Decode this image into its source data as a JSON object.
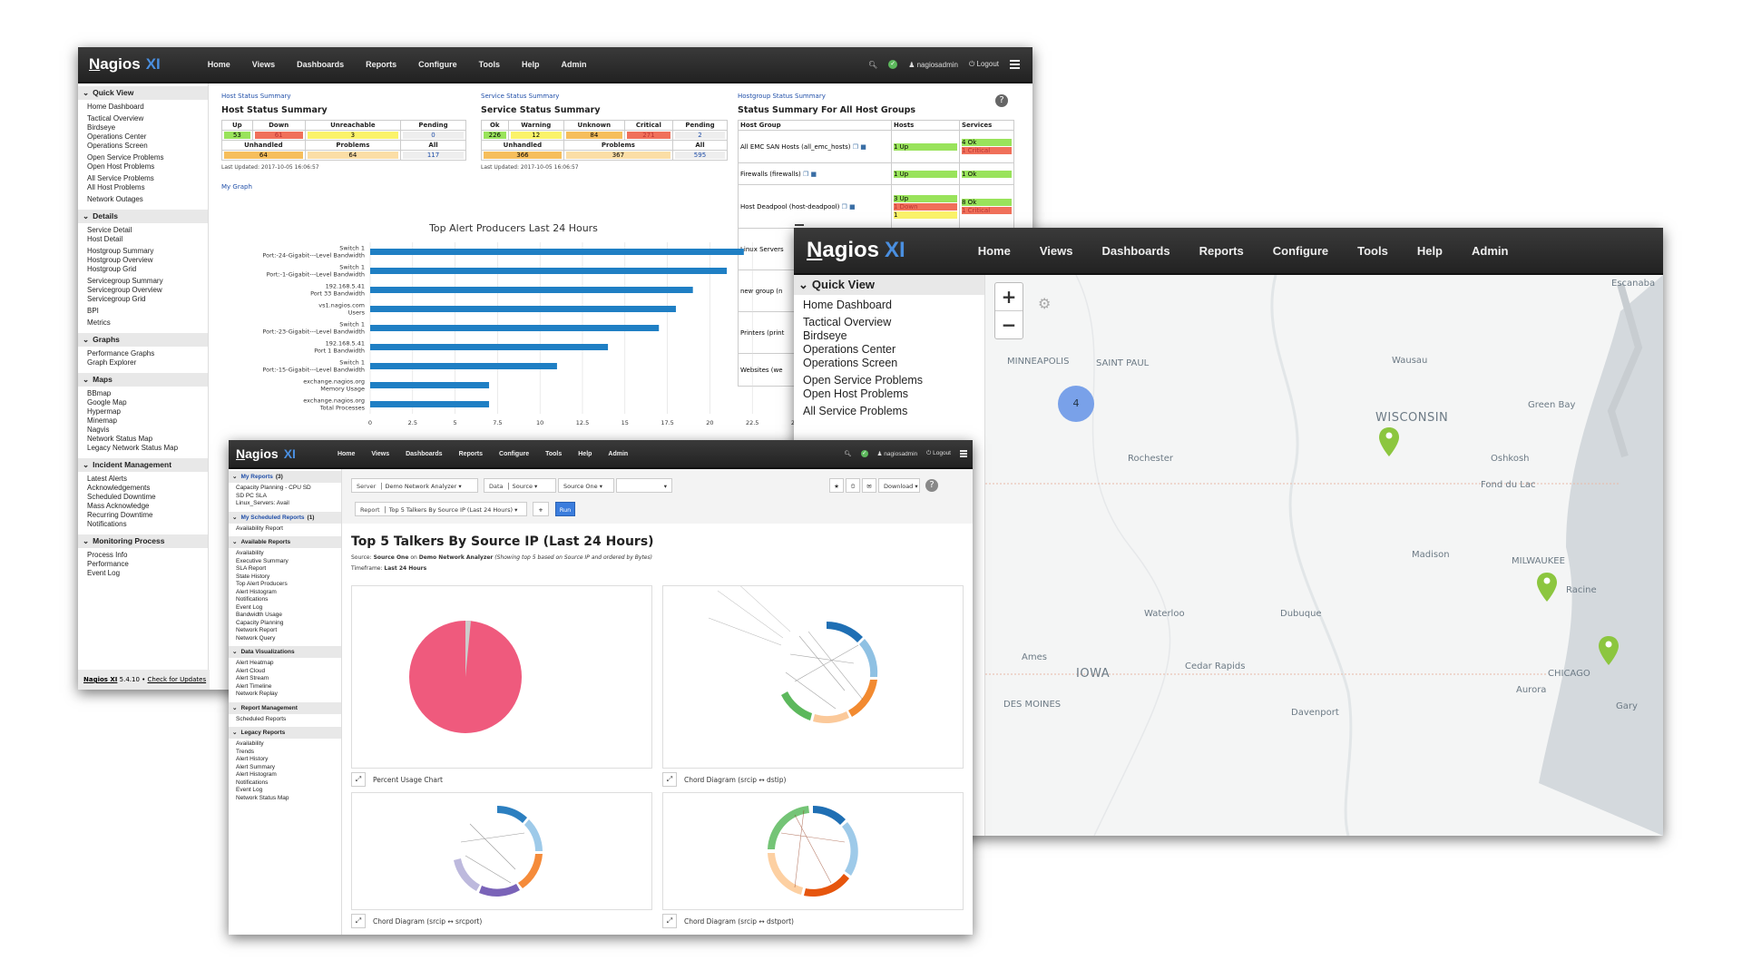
{
  "brand": {
    "name": "Nagios",
    "suffix": "XI"
  },
  "nav": [
    "Home",
    "Views",
    "Dashboards",
    "Reports",
    "Configure",
    "Tools",
    "Help",
    "Admin"
  ],
  "user": {
    "name": "nagiosadmin",
    "logout": "Logout"
  },
  "colors": {
    "accent": "#4a8fe0",
    "ok": "#99e35b",
    "critical": "#f0705a",
    "warning": "#fbf36a",
    "unknown": "#f6be5c",
    "pin": "#8cc63f"
  },
  "dashboard": {
    "sidebar": [
      {
        "title": "Quick View",
        "groups": [
          [
            "Home Dashboard"
          ],
          [
            "Tactical Overview",
            "Birdseye",
            "Operations Center",
            "Operations Screen"
          ],
          [
            "Open Service Problems",
            "Open Host Problems"
          ],
          [
            "All Service Problems",
            "All Host Problems"
          ],
          [
            "Network Outages"
          ]
        ]
      },
      {
        "title": "Details",
        "groups": [
          [
            "Service Detail",
            "Host Detail"
          ],
          [
            "Hostgroup Summary",
            "Hostgroup Overview",
            "Hostgroup Grid"
          ],
          [
            "Servicegroup Summary",
            "Servicegroup Overview",
            "Servicegroup Grid"
          ],
          [
            "BPI"
          ],
          [
            "Metrics"
          ]
        ]
      },
      {
        "title": "Graphs",
        "groups": [
          [
            "Performance Graphs",
            "Graph Explorer"
          ]
        ]
      },
      {
        "title": "Maps",
        "groups": [
          [
            "BBmap",
            "Google Map",
            "Hypermap",
            "Minemap",
            "Nagvis",
            "Network Status Map",
            "Legacy Network Status Map"
          ]
        ]
      },
      {
        "title": "Incident Management",
        "groups": [
          [
            "Latest Alerts",
            "Acknowledgements",
            "Scheduled Downtime",
            "Mass Acknowledge",
            "Recurring Downtime",
            "Notifications"
          ]
        ]
      },
      {
        "title": "Monitoring Process",
        "groups": [
          [
            "Process Info",
            "Performance",
            "Event Log"
          ]
        ]
      }
    ],
    "footer": {
      "product": "Nagios XI",
      "version": "5.4.10",
      "check": "Check for Updates"
    },
    "host_summary": {
      "link": "Host Status Summary",
      "title": "Host Status Summary",
      "headers": [
        "Up",
        "Down",
        "Unreachable",
        "Pending"
      ],
      "values": [
        "53",
        "61",
        "3",
        "0"
      ],
      "headers2": [
        "Unhandled",
        "Problems",
        "All"
      ],
      "values2": [
        "64",
        "64",
        "117"
      ],
      "updated": "Last Updated: 2017-10-05 16:06:57"
    },
    "service_summary": {
      "link": "Service Status Summary",
      "title": "Service Status Summary",
      "headers": [
        "Ok",
        "Warning",
        "Unknown",
        "Critical",
        "Pending"
      ],
      "values": [
        "226",
        "12",
        "84",
        "271",
        "2"
      ],
      "headers2": [
        "Unhandled",
        "Problems",
        "All"
      ],
      "values2": [
        "366",
        "367",
        "595"
      ],
      "updated": "Last Updated: 2017-10-05 16:06:57"
    },
    "hostgroup_summary": {
      "link": "Hostgroup Status Summary",
      "title": "Status Summary For All Host Groups",
      "headers": [
        "Host Group",
        "Hosts",
        "Services"
      ],
      "rows": [
        {
          "name": "All EMC SAN Hosts (all_emc_hosts)",
          "hosts": [
            "1 Up"
          ],
          "services": [
            "4 Ok",
            "1 Critical"
          ]
        },
        {
          "name": "Firewalls (firewalls)",
          "hosts": [
            "1 Up"
          ],
          "services": [
            "1 Ok"
          ]
        },
        {
          "name": "Host Deadpool (host-deadpool)",
          "hosts": [
            "3 Up",
            "1 Down",
            "1"
          ],
          "services": [
            "8 Ok",
            "1 Critical"
          ]
        },
        {
          "name": "Linux Servers",
          "hosts": [],
          "services": []
        },
        {
          "name": "new group (n",
          "hosts": [],
          "services": []
        },
        {
          "name": "Printers (print",
          "hosts": [],
          "services": []
        },
        {
          "name": "Websites (we",
          "hosts": [],
          "services": []
        }
      ]
    },
    "my_graph": "My Graph"
  },
  "chart_data": {
    "type": "bar",
    "orientation": "horizontal",
    "title": "Top Alert Producers Last 24 Hours",
    "categories": [
      [
        "Switch 1",
        "Port:-24-Gigabit---Level Bandwidth"
      ],
      [
        "Switch 1",
        "Port:-1-Gigabit---Level Bandwidth"
      ],
      [
        "192.168.5.41",
        "Port 33 Bandwidth"
      ],
      [
        "vs1.nagios.com",
        "Users"
      ],
      [
        "Switch 1",
        "Port:-23-Gigabit---Level Bandwidth"
      ],
      [
        "192.168.5.41",
        "Port 1 Bandwidth"
      ],
      [
        "Switch 1",
        "Port:-15-Gigabit---Level Bandwidth"
      ],
      [
        "exchange.nagios.org",
        "Memory Usage"
      ],
      [
        "exchange.nagios.org",
        "Total Processes"
      ]
    ],
    "values": [
      22,
      21,
      19,
      18,
      17,
      14,
      11,
      7,
      7
    ],
    "xlim": [
      0,
      25
    ],
    "xticks": [
      "0",
      "2.5",
      "5",
      "7.5",
      "10",
      "12.5",
      "15",
      "17.5",
      "20",
      "22.5",
      "25"
    ],
    "grid": true,
    "color": "#1f7fc4"
  },
  "map_window": {
    "sidebar_title": "Quick View",
    "items": [
      "Home Dashboard",
      "Tactical Overview",
      "Birdseye",
      "Operations Center",
      "Operations Screen",
      "Open Service Problems",
      "Open Host Problems",
      "All Service Problems"
    ],
    "zoom_in": "+",
    "zoom_out": "−",
    "cluster_count": "4",
    "labels": {
      "minneapolis": "MINNEAPOLIS",
      "saint_paul": "SAINT PAUL",
      "wausau": "Wausau",
      "escanaba": "Escanaba",
      "green_bay": "Green Bay",
      "wisconsin": "WISCONSIN",
      "rochester": "Rochester",
      "oshkosh": "Oshkosh",
      "fond_du_lac": "Fond du Lac",
      "madison": "Madison",
      "milwaukee": "MILWAUKEE",
      "racine": "Racine",
      "waterloo": "Waterloo",
      "dubuque": "Dubuque",
      "ames": "Ames",
      "iowa": "IOWA",
      "cedar_rapids": "Cedar Rapids",
      "chicago": "CHICAGO",
      "aurora": "Aurora",
      "des_moines": "DES MOINES",
      "davenport": "Davenport",
      "gary": "Gary"
    }
  },
  "reports_window": {
    "sidebar": [
      {
        "title": "My Reports",
        "count": "(3)",
        "items": [
          "Capacity Planning - CPU SD",
          "SD PC SLA",
          "Linux_Servers: Avail"
        ]
      },
      {
        "title": "My Scheduled Reports",
        "count": "(1)",
        "items": [
          "Availability Report"
        ]
      },
      {
        "title": "Available Reports",
        "count": "",
        "items": [
          "Availability",
          "Executive Summary",
          "SLA Report",
          "State History",
          "Top Alert Producers",
          "Alert Histogram",
          "Notifications",
          "Event Log",
          "Bandwidth Usage",
          "Capacity Planning",
          "Network Report",
          "Network Query"
        ]
      },
      {
        "title": "Data Visualizations",
        "count": "",
        "items": [
          "Alert Heatmap",
          "Alert Cloud",
          "Alert Stream",
          "Alert Timeline",
          "Network Replay"
        ]
      },
      {
        "title": "Report Management",
        "count": "",
        "items": [
          "Scheduled Reports"
        ]
      },
      {
        "title": "Legacy Reports",
        "count": "",
        "items": [
          "Availability",
          "Trends",
          "Alert History",
          "Alert Summary",
          "Alert Histogram",
          "Notifications",
          "Event Log",
          "Network Status Map"
        ]
      }
    ],
    "toolbar": {
      "server_label": "Server",
      "server_value": "Demo Network Analyzer",
      "data_label": "Data",
      "data_value": "Source",
      "source_value": "Source One",
      "extra_value": "",
      "report_label": "Report",
      "report_value": "Top 5 Talkers By Source IP (Last 24 Hours)",
      "add": "+",
      "run": "Run",
      "download": "Download"
    },
    "title": "Top 5 Talkers By Source IP (Last 24 Hours)",
    "source_line": {
      "prefix": "Source:",
      "source": "Source One",
      "on": "on",
      "analyzer": "Demo Network Analyzer",
      "note": "(Showing top 5 based on Source IP and ordered by Bytes)"
    },
    "timeframe": {
      "label": "Timeframe:",
      "value": "Last 24 Hours"
    },
    "panels": [
      "Percent Usage Chart",
      "Chord Diagram (srcip ↔ dstip)",
      "Chord Diagram (srcip ↔ srcport)",
      "Chord Diagram (srcip ↔ dstport)"
    ]
  }
}
